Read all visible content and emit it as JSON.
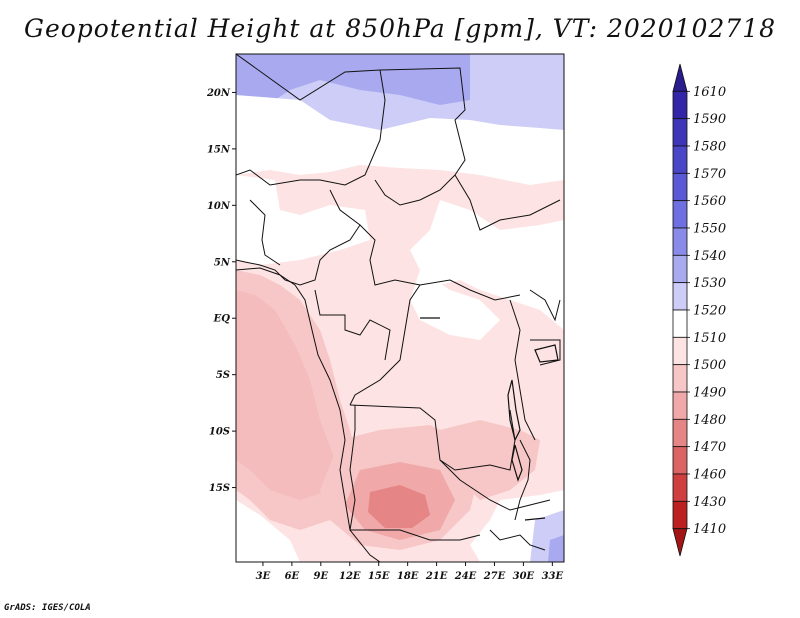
{
  "title": "Geopotential Height at 850hPa [gpm], VT: 2020102718",
  "credit": "GrADS: IGES/COLA",
  "map": {
    "variable": "Geopotential Height",
    "level": "850hPa",
    "units": "gpm",
    "valid_time": "2020102718",
    "lon_range": [
      0,
      34
    ],
    "lat_range": [
      -20,
      25
    ],
    "x_ticks": [
      "3E",
      "6E",
      "9E",
      "12E",
      "15E",
      "18E",
      "21E",
      "24E",
      "27E",
      "30E",
      "33E"
    ],
    "y_ticks": [
      "20N",
      "15N",
      "10N",
      "5N",
      "EQ",
      "5S",
      "10S",
      "15S"
    ]
  },
  "colorbar": {
    "levels": [
      "1610",
      "1590",
      "1580",
      "1570",
      "1560",
      "1550",
      "1540",
      "1530",
      "1520",
      "1510",
      "1500",
      "1490",
      "1480",
      "1470",
      "1460",
      "1430",
      "1410"
    ],
    "colors": [
      "#2a1b8e",
      "#3325a8",
      "#3e35b8",
      "#4a46c8",
      "#5a5ad6",
      "#6e6fe0",
      "#8a8ae8",
      "#a9a9f0",
      "#cdcdf7",
      "#ffffff",
      "#fde3e3",
      "#f7c6c6",
      "#f0a8a8",
      "#e58585",
      "#dc6363",
      "#cf3f3f",
      "#bb1f1f",
      "#a31515"
    ]
  }
}
